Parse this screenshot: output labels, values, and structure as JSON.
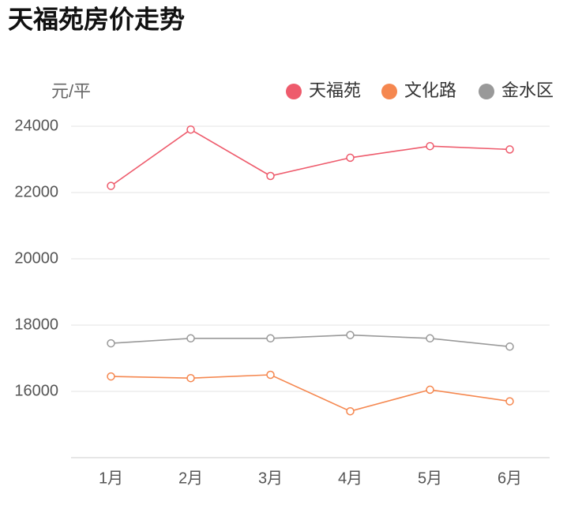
{
  "chart_data": {
    "type": "line",
    "title": "天福苑房价走势",
    "y_label": "元/平",
    "categories": [
      "1月",
      "2月",
      "3月",
      "4月",
      "5月",
      "6月"
    ],
    "series": [
      {
        "name": "天福苑",
        "color": "#ee5b6c",
        "values": [
          22200,
          23900,
          22500,
          23050,
          23400,
          23300
        ]
      },
      {
        "name": "文化路",
        "color": "#f5874f",
        "values": [
          16450,
          16400,
          16500,
          15400,
          16050,
          15700
        ]
      },
      {
        "name": "金水区",
        "color": "#999999",
        "values": [
          17450,
          17600,
          17600,
          17700,
          17600,
          17350
        ]
      }
    ],
    "ylim": [
      14000,
      24000
    ],
    "yticks": [
      16000,
      18000,
      20000,
      22000,
      24000
    ],
    "grid": true,
    "legend": "top-right"
  }
}
